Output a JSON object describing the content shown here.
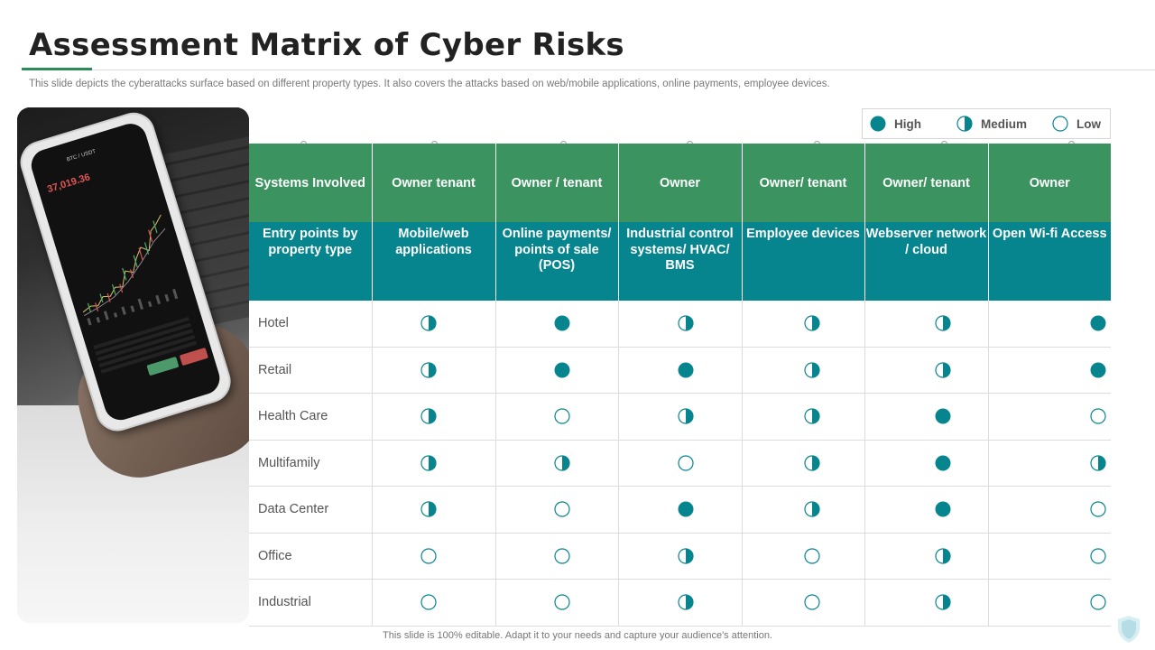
{
  "title": "Assessment Matrix of Cyber Risks",
  "subtitle": "This slide depicts the cyberattacks surface based on different property types.  It also covers the attacks based on web/mobile applications, online payments, employee devices.",
  "footer": "This slide is 100% editable.  Adapt it to your needs and capture your audience's attention.",
  "colors": {
    "accent": "#07858f",
    "header_green": "#3b9460",
    "header_teal": "#07858f",
    "title_accent": "#2e8b57"
  },
  "photo": {
    "price": "37,019.36",
    "ticker": "BTC / USDT"
  },
  "legend": [
    {
      "level": "high",
      "label": "High"
    },
    {
      "level": "medium",
      "label": "Medium"
    },
    {
      "level": "low",
      "label": "Low"
    }
  ],
  "matrix": {
    "owner_row": [
      "Systems Involved",
      "Owner tenant",
      "Owner / tenant",
      "Owner",
      "Owner/ tenant",
      "Owner/ tenant",
      "Owner"
    ],
    "entry_row": [
      "Entry points by property type",
      "Mobile/web applications",
      "Online payments/ points of sale (POS)",
      "Industrial control systems/ HVAC/ BMS",
      "Employee devices",
      "Webserver network / cloud",
      "Open Wi-fi Access"
    ],
    "rows": [
      {
        "label": "Hotel",
        "levels": [
          "medium",
          "high",
          "medium",
          "medium",
          "medium",
          "high"
        ]
      },
      {
        "label": "Retail",
        "levels": [
          "medium",
          "high",
          "high",
          "medium",
          "medium",
          "high"
        ]
      },
      {
        "label": "Health Care",
        "levels": [
          "medium",
          "low",
          "medium",
          "medium",
          "high",
          "low"
        ]
      },
      {
        "label": "Multifamily",
        "levels": [
          "medium",
          "medium",
          "low",
          "medium",
          "high",
          "medium"
        ]
      },
      {
        "label": "Data Center",
        "levels": [
          "medium",
          "low",
          "high",
          "medium",
          "high",
          "low"
        ]
      },
      {
        "label": "Office",
        "levels": [
          "low",
          "low",
          "medium",
          "low",
          "medium",
          "low"
        ]
      },
      {
        "label": "Industrial",
        "levels": [
          "low",
          "low",
          "medium",
          "low",
          "medium",
          "low"
        ]
      }
    ]
  }
}
